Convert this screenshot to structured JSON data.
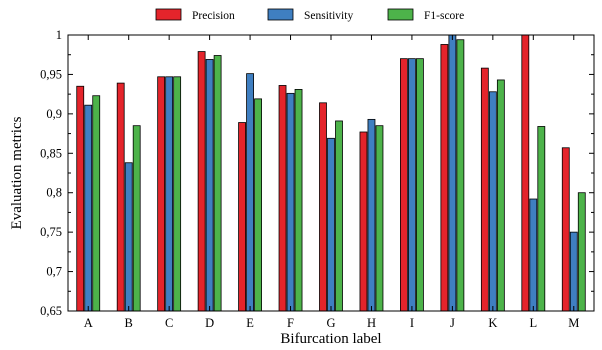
{
  "chart_data": {
    "type": "bar",
    "title": "",
    "xlabel": "Bifurcation label",
    "ylabel": "Evaluation metrics",
    "categories": [
      "A",
      "B",
      "C",
      "D",
      "E",
      "F",
      "G",
      "H",
      "I",
      "J",
      "K",
      "L",
      "M"
    ],
    "series": [
      {
        "name": "Precision",
        "color": "#e4242b",
        "values": [
          0.935,
          0.939,
          0.947,
          0.979,
          0.889,
          0.936,
          0.914,
          0.877,
          0.97,
          0.988,
          0.958,
          1.0,
          0.857
        ]
      },
      {
        "name": "Sensitivity",
        "color": "#3f7fc1",
        "values": [
          0.911,
          0.838,
          0.947,
          0.969,
          0.951,
          0.926,
          0.869,
          0.893,
          0.97,
          1.0,
          0.928,
          0.792,
          0.75
        ]
      },
      {
        "name": "F1-score",
        "color": "#4db34a",
        "values": [
          0.923,
          0.885,
          0.947,
          0.974,
          0.919,
          0.931,
          0.891,
          0.885,
          0.97,
          0.994,
          0.943,
          0.884,
          0.8
        ]
      }
    ],
    "ylim": [
      0.65,
      1.0
    ],
    "yticks": [
      0.65,
      0.7,
      0.75,
      0.8,
      0.85,
      0.9,
      0.95,
      1.0
    ],
    "ytick_labels": [
      "0,65",
      "0,7",
      "0,75",
      "0,8",
      "0,85",
      "0,9",
      "0,95",
      "1"
    ],
    "grid": false,
    "legend_position": "top"
  }
}
